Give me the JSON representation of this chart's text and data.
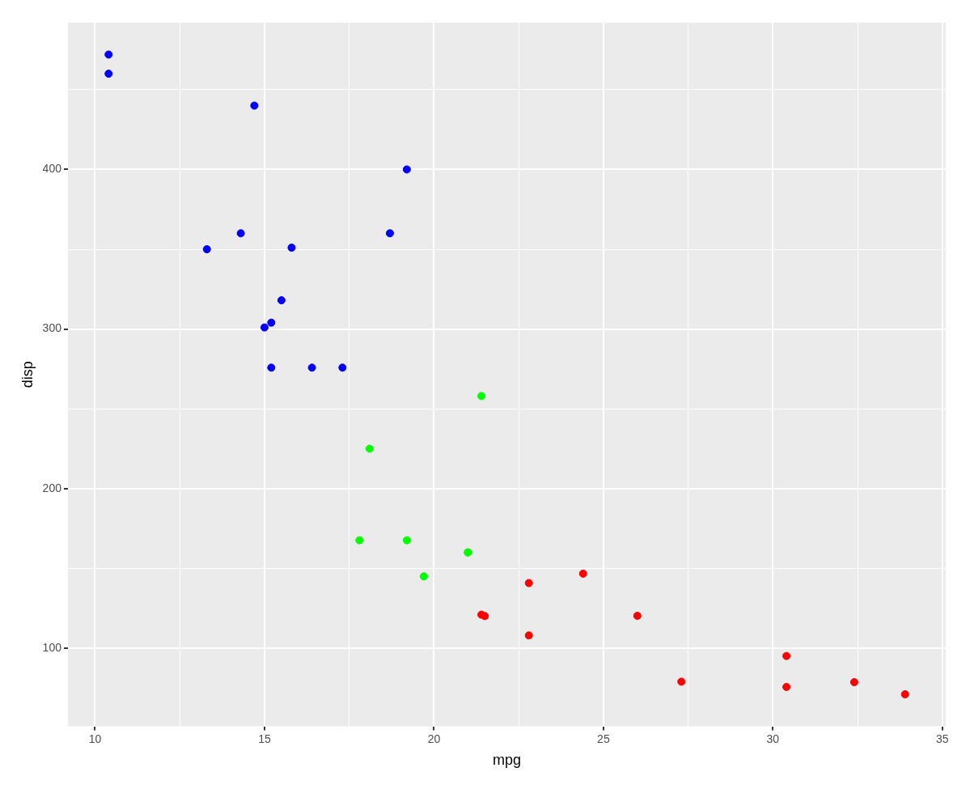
{
  "chart_data": {
    "type": "scatter",
    "xlabel": "mpg",
    "ylabel": "disp",
    "grid": true,
    "legend": false,
    "marker": "circle",
    "xlim": [
      9.2,
      35.1
    ],
    "ylim": [
      51,
      492
    ],
    "xticks": [
      10,
      {
        "value": 12.5,
        "label": null
      },
      15,
      {
        "value": 17.5,
        "label": null
      },
      20,
      {
        "value": 22.5,
        "label": null
      },
      25,
      {
        "value": 27.5,
        "label": null
      },
      30,
      {
        "value": 32.5,
        "label": null
      },
      35
    ],
    "yticks": [
      100,
      {
        "value": 150,
        "label": null
      },
      200,
      {
        "value": 250,
        "label": null
      },
      300,
      {
        "value": 350,
        "label": null
      },
      400,
      {
        "value": 450,
        "label": null
      }
    ],
    "series": [
      {
        "color": "#0000ff",
        "x": [
          18.7,
          14.3,
          16.4,
          17.3,
          15.2,
          10.4,
          10.4,
          14.7,
          15.5,
          15.2,
          13.3,
          19.2,
          15.8,
          15.0
        ],
        "values": [
          360,
          360,
          275.8,
          275.8,
          275.8,
          472,
          460,
          440,
          318,
          304,
          350,
          400,
          351,
          301
        ]
      },
      {
        "color": "#00ff00",
        "x": [
          21.0,
          21.0,
          21.4,
          18.1,
          19.2,
          17.8,
          19.7
        ],
        "values": [
          160,
          160,
          258,
          225,
          167.6,
          167.6,
          145
        ]
      },
      {
        "color": "#ff0000",
        "x": [
          22.8,
          24.4,
          22.8,
          32.4,
          30.4,
          33.9,
          21.5,
          27.3,
          26.0,
          30.4,
          21.4
        ],
        "values": [
          108,
          146.7,
          140.8,
          78.7,
          75.7,
          71.1,
          120.1,
          79,
          120.3,
          95.1,
          121
        ]
      }
    ]
  }
}
